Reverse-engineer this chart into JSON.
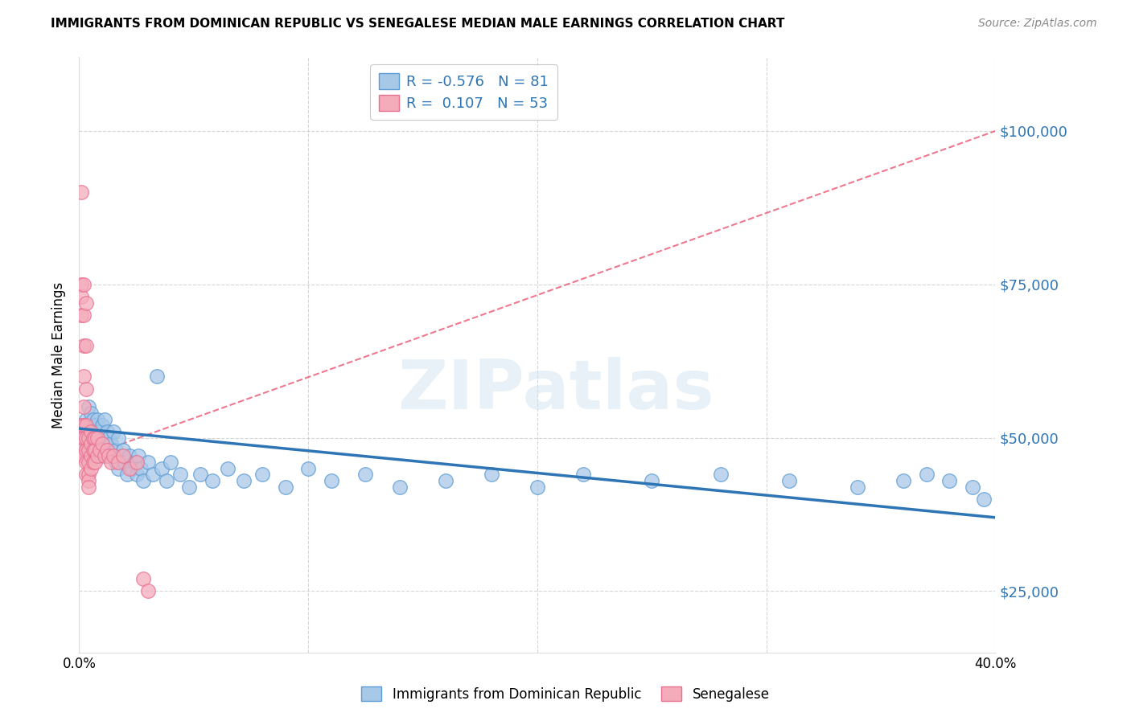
{
  "title": "IMMIGRANTS FROM DOMINICAN REPUBLIC VS SENEGALESE MEDIAN MALE EARNINGS CORRELATION CHART",
  "source": "Source: ZipAtlas.com",
  "ylabel": "Median Male Earnings",
  "y_ticks": [
    25000,
    50000,
    75000,
    100000
  ],
  "y_tick_labels": [
    "$25,000",
    "$50,000",
    "$75,000",
    "$100,000"
  ],
  "watermark": "ZIPatlas",
  "legend": {
    "blue_R": "-0.576",
    "blue_N": "81",
    "pink_R": "0.107",
    "pink_N": "53"
  },
  "blue_color": "#A8C8E8",
  "blue_edge_color": "#5B9BD5",
  "pink_color": "#F4ACBB",
  "pink_edge_color": "#E87090",
  "blue_trend_color": "#2E75B6",
  "pink_trend_color": "#E84060",
  "blue_scatter_x": [
    0.001,
    0.002,
    0.002,
    0.003,
    0.003,
    0.004,
    0.004,
    0.004,
    0.005,
    0.005,
    0.005,
    0.005,
    0.006,
    0.006,
    0.006,
    0.007,
    0.007,
    0.007,
    0.008,
    0.008,
    0.009,
    0.009,
    0.009,
    0.01,
    0.01,
    0.01,
    0.011,
    0.011,
    0.012,
    0.012,
    0.013,
    0.013,
    0.014,
    0.015,
    0.015,
    0.016,
    0.016,
    0.017,
    0.017,
    0.018,
    0.019,
    0.02,
    0.021,
    0.022,
    0.023,
    0.024,
    0.025,
    0.026,
    0.027,
    0.028,
    0.03,
    0.032,
    0.034,
    0.036,
    0.038,
    0.04,
    0.044,
    0.048,
    0.053,
    0.058,
    0.065,
    0.072,
    0.08,
    0.09,
    0.1,
    0.11,
    0.125,
    0.14,
    0.16,
    0.18,
    0.2,
    0.22,
    0.25,
    0.28,
    0.31,
    0.34,
    0.36,
    0.37,
    0.38,
    0.39,
    0.395
  ],
  "blue_scatter_y": [
    52000,
    51000,
    50000,
    53000,
    49000,
    55000,
    51000,
    48000,
    52000,
    50000,
    54000,
    47000,
    53000,
    50000,
    49000,
    52000,
    48000,
    51000,
    50000,
    53000,
    51000,
    49000,
    47000,
    52000,
    50000,
    48000,
    53000,
    49000,
    51000,
    47000,
    50000,
    48000,
    49000,
    47000,
    51000,
    48000,
    46000,
    50000,
    45000,
    47000,
    48000,
    46000,
    44000,
    47000,
    45000,
    46000,
    44000,
    47000,
    45000,
    43000,
    46000,
    44000,
    60000,
    45000,
    43000,
    46000,
    44000,
    42000,
    44000,
    43000,
    45000,
    43000,
    44000,
    42000,
    45000,
    43000,
    44000,
    42000,
    43000,
    44000,
    42000,
    44000,
    43000,
    44000,
    43000,
    42000,
    43000,
    44000,
    43000,
    42000,
    40000
  ],
  "pink_scatter_x": [
    0.001,
    0.001,
    0.001,
    0.001,
    0.001,
    0.001,
    0.002,
    0.002,
    0.002,
    0.002,
    0.002,
    0.002,
    0.002,
    0.002,
    0.003,
    0.003,
    0.003,
    0.003,
    0.003,
    0.003,
    0.003,
    0.003,
    0.004,
    0.004,
    0.004,
    0.004,
    0.004,
    0.004,
    0.005,
    0.005,
    0.005,
    0.005,
    0.006,
    0.006,
    0.006,
    0.007,
    0.007,
    0.007,
    0.008,
    0.008,
    0.009,
    0.01,
    0.011,
    0.012,
    0.013,
    0.014,
    0.015,
    0.017,
    0.019,
    0.022,
    0.025,
    0.028,
    0.03
  ],
  "pink_scatter_y": [
    90000,
    75000,
    73000,
    70000,
    52000,
    48000,
    75000,
    70000,
    65000,
    60000,
    55000,
    52000,
    50000,
    47000,
    72000,
    65000,
    58000,
    52000,
    50000,
    48000,
    46000,
    44000,
    50000,
    48000,
    46000,
    44000,
    43000,
    42000,
    51000,
    49000,
    47000,
    45000,
    50000,
    48000,
    46000,
    50000,
    48000,
    46000,
    50000,
    47000,
    48000,
    49000,
    47000,
    48000,
    47000,
    46000,
    47000,
    46000,
    47000,
    45000,
    46000,
    27000,
    25000
  ],
  "xlim": [
    0.0,
    0.4
  ],
  "ylim": [
    15000,
    112000
  ],
  "blue_trend_x": [
    0.0,
    0.4
  ],
  "blue_trend_y": [
    51500,
    37000
  ],
  "pink_trend_x": [
    0.0,
    0.4
  ],
  "pink_trend_y": [
    46500,
    100000
  ],
  "x_tick_positions": [
    0.0,
    0.1,
    0.2,
    0.3,
    0.4
  ],
  "x_tick_labels": [
    "0.0%",
    "",
    "",
    "",
    "40.0%"
  ]
}
